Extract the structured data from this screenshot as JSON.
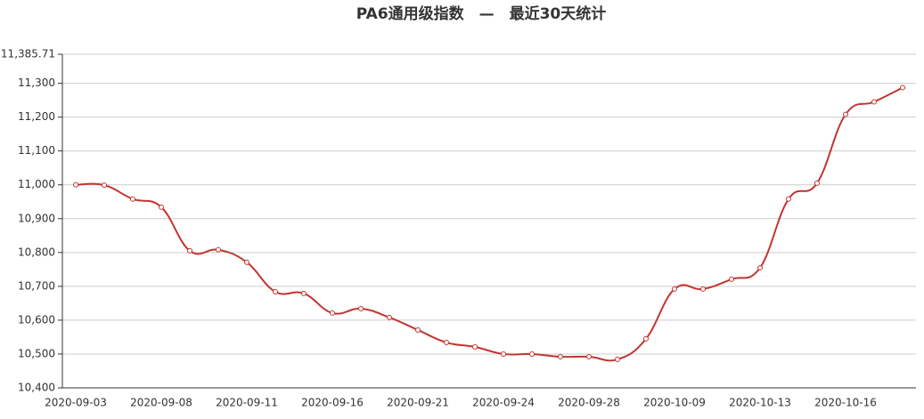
{
  "chart_data": {
    "type": "line",
    "title": "PA6通用级指数　—　最近30天统计",
    "categories": [
      "2020-09-03",
      null,
      null,
      "2020-09-08",
      null,
      null,
      "2020-09-11",
      null,
      null,
      "2020-09-16",
      null,
      null,
      "2020-09-21",
      null,
      null,
      "2020-09-24",
      null,
      null,
      "2020-09-28",
      null,
      null,
      "2020-10-09",
      null,
      null,
      "2020-10-13",
      null,
      null,
      "2020-10-16",
      null,
      null
    ],
    "series": [
      {
        "color": "#c23531",
        "values": [
          11000,
          10999,
          10958,
          10934,
          10805,
          10808,
          10771,
          10684,
          10679,
          10621,
          10634,
          10608,
          10571,
          10534,
          10521,
          10500,
          10500,
          10492,
          10492,
          10484,
          10545,
          10692,
          10692,
          10721,
          10755,
          10958,
          11005,
          11208,
          11245,
          11287
        ]
      }
    ],
    "ylim": [
      10400,
      11385.71
    ],
    "yticks": [
      {
        "value": 10400,
        "label": "10,400"
      },
      {
        "value": 10500,
        "label": "10,500"
      },
      {
        "value": 10600,
        "label": "10,600"
      },
      {
        "value": 10700,
        "label": "10,700"
      },
      {
        "value": 10800,
        "label": "10,800"
      },
      {
        "value": 10900,
        "label": "10,900"
      },
      {
        "value": 11000,
        "label": "11,000"
      },
      {
        "value": 11100,
        "label": "11,100"
      },
      {
        "value": 11200,
        "label": "11,200"
      },
      {
        "value": 11300,
        "label": "11,300"
      },
      {
        "value": 11385.71,
        "label": "11,385.71"
      }
    ],
    "grid": true
  }
}
